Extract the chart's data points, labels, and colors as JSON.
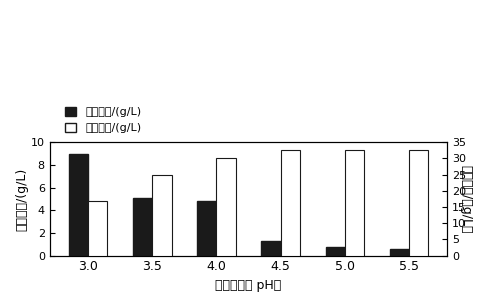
{
  "categories": [
    "3.0",
    "3.5",
    "4.0",
    "4.5",
    "5.0",
    "5.5"
  ],
  "sugar_values": [
    9.0,
    5.1,
    4.8,
    1.3,
    0.8,
    0.6
  ],
  "ethanol_values": [
    17.0,
    25.0,
    30.0,
    32.5,
    32.5,
    32.5
  ],
  "sugar_color": "#1a1a1a",
  "ethanol_color": "#ffffff",
  "ethanol_edgecolor": "#1a1a1a",
  "left_ylim": [
    0,
    10
  ],
  "left_yticks": [
    0,
    2,
    4,
    6,
    8,
    10
  ],
  "right_ylim": [
    0,
    35
  ],
  "right_yticks": [
    0,
    5,
    10,
    15,
    20,
    25,
    30,
    35
  ],
  "left_ylabel": "残糖浓度/(g/L)",
  "right_ylabel": "乙醇浓度/（g/L）",
  "xlabel": "发酵液初始 pH値",
  "legend_sugar": "残糖浓度/(g/L)",
  "legend_ethanol": "乙醇浓度/(g/L)",
  "bar_width": 0.3,
  "background_color": "#ffffff"
}
